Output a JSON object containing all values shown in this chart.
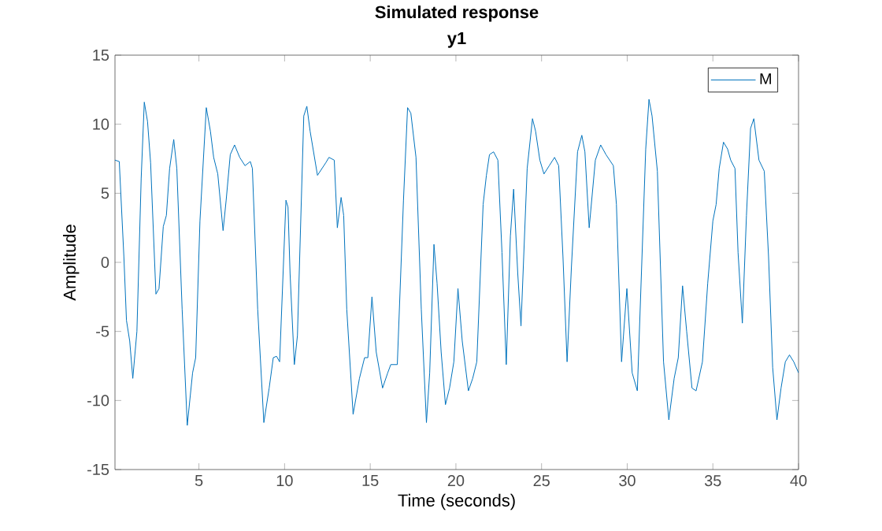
{
  "chart_data": {
    "type": "line",
    "title": "Simulated response",
    "subtitle": "y1",
    "xlabel": "Time (seconds)",
    "ylabel": "Amplitude",
    "xlim": [
      0.1,
      40
    ],
    "ylim": [
      -15,
      15
    ],
    "xticks": [
      5,
      10,
      15,
      20,
      25,
      30,
      35,
      40
    ],
    "yticks": [
      -15,
      -10,
      -5,
      0,
      5,
      10,
      15
    ],
    "legend": "top right",
    "grid": false,
    "series": [
      {
        "name": "M",
        "color": "#0072bd",
        "x": [
          0.1,
          0.35,
          0.62,
          0.77,
          0.96,
          1.14,
          1.38,
          1.63,
          1.81,
          2.0,
          2.18,
          2.49,
          2.67,
          2.92,
          3.1,
          3.29,
          3.53,
          3.71,
          4.02,
          4.32,
          4.63,
          4.81,
          5.06,
          5.43,
          5.67,
          5.86,
          6.1,
          6.41,
          6.59,
          6.83,
          7.08,
          7.38,
          7.69,
          8.0,
          8.12,
          8.43,
          8.79,
          9.1,
          9.34,
          9.53,
          9.71,
          10.08,
          10.2,
          10.32,
          10.57,
          10.75,
          11.12,
          11.3,
          11.49,
          11.92,
          12.4,
          12.59,
          12.9,
          13.08,
          13.3,
          13.45,
          13.63,
          14.0,
          14.37,
          14.67,
          14.86,
          15.1,
          15.35,
          15.72,
          16.02,
          16.2,
          16.58,
          16.94,
          17.18,
          17.37,
          17.67,
          17.98,
          18.28,
          18.47,
          18.72,
          18.9,
          19.14,
          19.39,
          19.63,
          19.88,
          20.12,
          20.37,
          20.73,
          20.98,
          21.22,
          21.59,
          21.78,
          21.96,
          22.2,
          22.45,
          22.69,
          22.94,
          23.18,
          23.37,
          23.61,
          23.8,
          24.16,
          24.47,
          24.65,
          24.9,
          25.14,
          25.45,
          25.76,
          26.0,
          26.25,
          26.49,
          26.74,
          27.1,
          27.35,
          27.53,
          27.78,
          28.14,
          28.45,
          28.76,
          29.19,
          29.37,
          29.67,
          29.98,
          30.29,
          30.59,
          30.84,
          31.08,
          31.27,
          31.45,
          31.76,
          32.12,
          32.43,
          32.74,
          32.98,
          33.23,
          33.47,
          33.78,
          34.02,
          34.39,
          34.7,
          35.0,
          35.19,
          35.37,
          35.62,
          35.86,
          36.04,
          36.29,
          36.47,
          36.72,
          36.96,
          37.2,
          37.39,
          37.69,
          38.0,
          38.25,
          38.49,
          38.74,
          38.98,
          39.23,
          39.47,
          39.72,
          40.0
        ],
        "values": [
          7.4,
          7.3,
          0.4,
          -4.2,
          -5.7,
          -8.4,
          -5.0,
          6.1,
          11.6,
          10.2,
          7.2,
          -2.3,
          -1.9,
          2.6,
          3.4,
          6.8,
          8.9,
          6.8,
          -3.4,
          -11.8,
          -8.0,
          -6.9,
          3.0,
          11.2,
          9.5,
          7.6,
          6.4,
          2.3,
          4.5,
          7.8,
          8.5,
          7.6,
          7.0,
          7.3,
          6.8,
          -3.4,
          -11.6,
          -9.1,
          -6.9,
          -6.8,
          -7.2,
          4.5,
          4.0,
          -0.8,
          -7.4,
          -5.3,
          10.6,
          11.3,
          9.5,
          6.3,
          7.2,
          7.6,
          7.4,
          2.5,
          4.7,
          3.4,
          -3.4,
          -11.0,
          -8.4,
          -6.9,
          -6.9,
          -2.5,
          -6.5,
          -9.1,
          -8.0,
          -7.4,
          -7.4,
          4.5,
          11.2,
          10.8,
          7.6,
          -3.4,
          -11.6,
          -8.0,
          1.3,
          -1.5,
          -6.5,
          -10.3,
          -9.1,
          -7.2,
          -1.9,
          -5.7,
          -9.3,
          -8.4,
          -7.2,
          4.2,
          6.3,
          7.8,
          8.0,
          7.4,
          0.7,
          -7.4,
          1.9,
          5.3,
          -0.8,
          -4.6,
          6.8,
          10.4,
          9.5,
          7.4,
          6.4,
          7.0,
          7.6,
          7.0,
          0.4,
          -7.2,
          -0.4,
          8.0,
          9.2,
          8.0,
          2.5,
          7.4,
          8.5,
          7.8,
          7.0,
          4.2,
          -7.2,
          -1.9,
          -8.0,
          -9.3,
          -0.4,
          8.2,
          11.8,
          10.6,
          6.6,
          -7.2,
          -11.4,
          -8.4,
          -6.9,
          -1.7,
          -5.0,
          -9.1,
          -9.3,
          -7.2,
          -1.5,
          3.0,
          4.2,
          6.8,
          8.7,
          8.2,
          7.4,
          6.8,
          0.7,
          -4.4,
          3.4,
          9.7,
          10.4,
          7.4,
          6.6,
          0.4,
          -7.6,
          -11.4,
          -9.1,
          -7.2,
          -6.7,
          -7.2,
          -8.0
        ]
      }
    ]
  }
}
